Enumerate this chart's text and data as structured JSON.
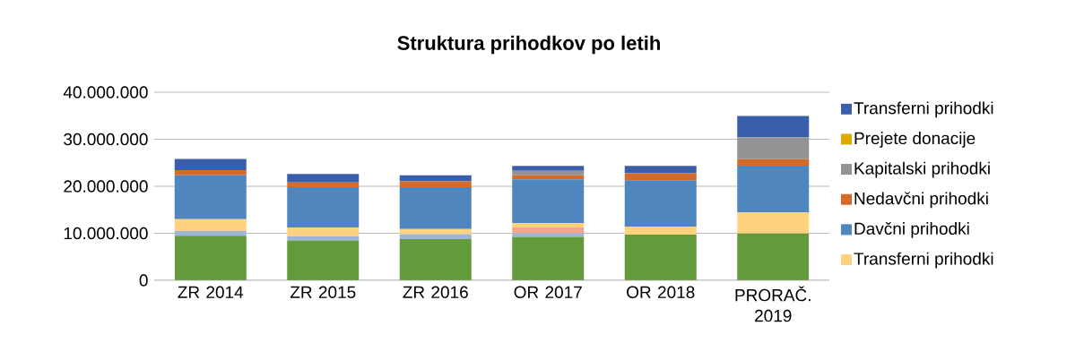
{
  "chart_data": {
    "type": "bar",
    "title": "Struktura prihodkov po letih",
    "stacked": true,
    "grid": "y",
    "legend": "right",
    "categories": [
      "ZR 2014",
      "ZR 2015",
      "ZR 2016",
      "OR 2017",
      "OR 2018",
      "PRORAČ. 2019"
    ],
    "ylim": [
      0,
      40000000
    ],
    "yticks": [
      0,
      {
        "value": 10000000,
        "label": "10.000.000"
      },
      {
        "value": 20000000,
        "label": "20.000.000"
      },
      {
        "value": 30000000,
        "label": "30.000.000"
      },
      {
        "value": 40000000,
        "label": "40.000.000"
      }
    ],
    "series": [
      {
        "color": "#639a3c",
        "values": [
          9500000,
          8500000,
          8750000,
          9250000,
          9700000,
          9950000
        ]
      },
      {
        "color": "#9db5d9",
        "values": [
          1000000,
          900000,
          1050000,
          750000,
          0,
          0
        ]
      },
      {
        "color": "#f3a68a",
        "values": [
          0,
          0,
          0,
          1250000,
          0,
          0
        ]
      },
      {
        "name": "Transferni prihodki",
        "color": "#ffd27f",
        "values": [
          2500000,
          1850000,
          1100000,
          950000,
          1750000,
          4500000
        ]
      },
      {
        "name": "Davčni prihodki",
        "color": "#4e86bd",
        "values": [
          9350000,
          8550000,
          8900000,
          9300000,
          9850000,
          9950000
        ]
      },
      {
        "name": "Nedavčni prihodki",
        "color": "#d46b29",
        "values": [
          1100000,
          1000000,
          1250000,
          850000,
          1450000,
          1350000
        ]
      },
      {
        "name": "Kapitalski prihodki",
        "color": "#939393",
        "values": [
          0,
          0,
          0,
          950000,
          0,
          4700000
        ]
      },
      {
        "name": "Prejete donacije",
        "color": "#e0a800",
        "values": [
          0,
          0,
          0,
          0,
          0,
          0
        ]
      },
      {
        "name": "Transferni prihodki",
        "color": "#3a5faa",
        "values": [
          2350000,
          1800000,
          1300000,
          1050000,
          1600000,
          4500000
        ]
      }
    ]
  }
}
